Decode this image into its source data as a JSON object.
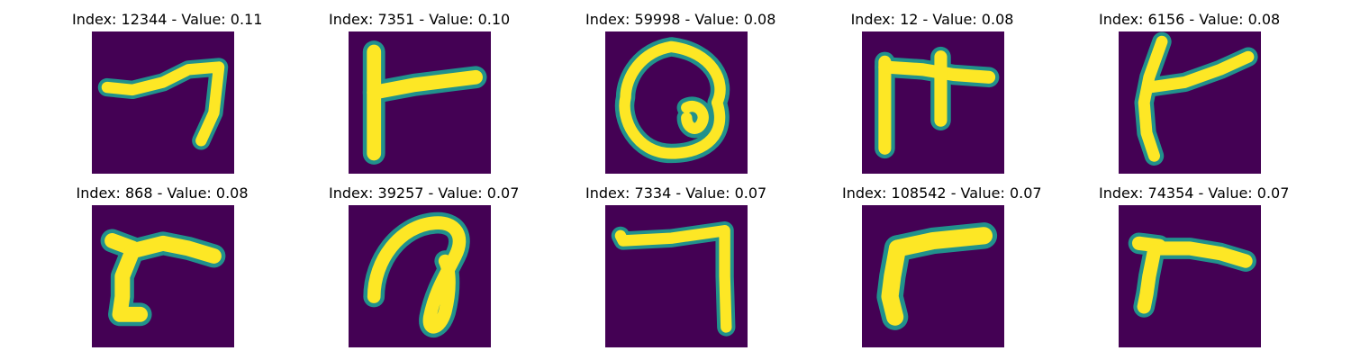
{
  "colors": {
    "background": "#440154",
    "edge": "#21918c",
    "stroke": "#fde725"
  },
  "panels": [
    {
      "title": "Index: 12344 - Value: 0.11",
      "icon": "handwritten-glyph-horizontal-stroke-with-hook"
    },
    {
      "title": "Index: 7351 - Value: 0.10",
      "icon": "handwritten-glyph-vertical-with-right-bar"
    },
    {
      "title": "Index: 59998 - Value: 0.08",
      "icon": "handwritten-glyph-loop"
    },
    {
      "title": "Index: 12 - Value: 0.08",
      "icon": "handwritten-glyph-pi-like"
    },
    {
      "title": "Index: 6156 - Value: 0.08",
      "icon": "handwritten-glyph-slanted-vertical-with-bar"
    },
    {
      "title": "Index: 868 - Value: 0.08",
      "icon": "handwritten-glyph-r-like"
    },
    {
      "title": "Index: 39257 - Value: 0.07",
      "icon": "handwritten-glyph-curl"
    },
    {
      "title": "Index: 7334 - Value: 0.07",
      "icon": "handwritten-glyph-seven-like"
    },
    {
      "title": "Index: 108542 - Value: 0.07",
      "icon": "handwritten-glyph-thick-r-like"
    },
    {
      "title": "Index: 74354 - Value: 0.07",
      "icon": "handwritten-glyph-small-r-like"
    }
  ]
}
